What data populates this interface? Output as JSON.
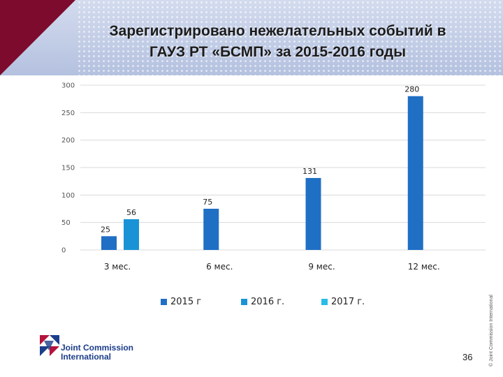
{
  "slide": {
    "title_line1": "Зарегистрировано нежелательных событий в",
    "title_line2": "ГАУЗ РТ «БСМП» за 2015-2016 годы",
    "page_number": "36",
    "copyright": "© Joint Commission International",
    "logo": {
      "line1": "Joint Commission",
      "line2": "International",
      "color": "#1b3d8a",
      "accent_color": "#b3133d"
    }
  },
  "chart_data": {
    "type": "bar",
    "title": "",
    "xlabel": "",
    "ylabel": "",
    "ylim": [
      0,
      300
    ],
    "yticks": [
      0,
      50,
      100,
      150,
      200,
      250,
      300
    ],
    "grid": true,
    "legend_position": "bottom",
    "categories": [
      "3 мес.",
      "6 мес.",
      "9 мес.",
      "12 мес."
    ],
    "series": [
      {
        "name": "2015 г",
        "color": "#1f6fc5",
        "values": [
          25,
          75,
          131,
          280
        ]
      },
      {
        "name": "2016 г.",
        "color": "#1993d6",
        "values": [
          56,
          null,
          null,
          null
        ]
      },
      {
        "name": "2017 г.",
        "color": "#29bce8",
        "values": [
          null,
          null,
          null,
          null
        ]
      }
    ]
  }
}
